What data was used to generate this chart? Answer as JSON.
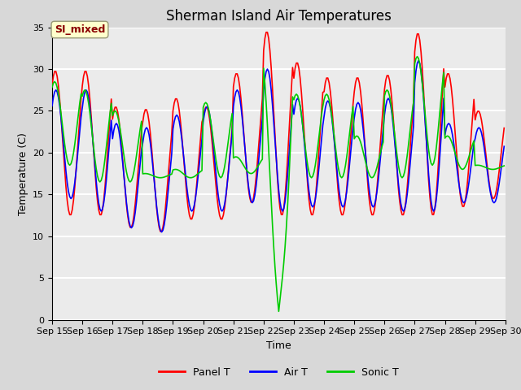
{
  "title": "Sherman Island Air Temperatures",
  "xlabel": "Time",
  "ylabel": "Temperature (C)",
  "ylim": [
    0,
    35
  ],
  "yticks": [
    0,
    5,
    10,
    15,
    20,
    25,
    30,
    35
  ],
  "xtick_labels": [
    "Sep 15",
    "Sep 16",
    "Sep 17",
    "Sep 18",
    "Sep 19",
    "Sep 20",
    "Sep 21",
    "Sep 22",
    "Sep 23",
    "Sep 24",
    "Sep 25",
    "Sep 26",
    "Sep 27",
    "Sep 28",
    "Sep 29",
    "Sep 30"
  ],
  "panel_color": "#FF0000",
  "air_color": "#0000FF",
  "sonic_color": "#00CC00",
  "annotation_label": "SI_mixed",
  "annotation_color": "#8B0000",
  "annotation_bg": "#FFFFCC",
  "fig_facecolor": "#D8D8D8",
  "plot_facecolor": "#EBEBEB",
  "grid_color": "white",
  "title_fontsize": 12,
  "axis_fontsize": 9,
  "tick_fontsize": 8
}
